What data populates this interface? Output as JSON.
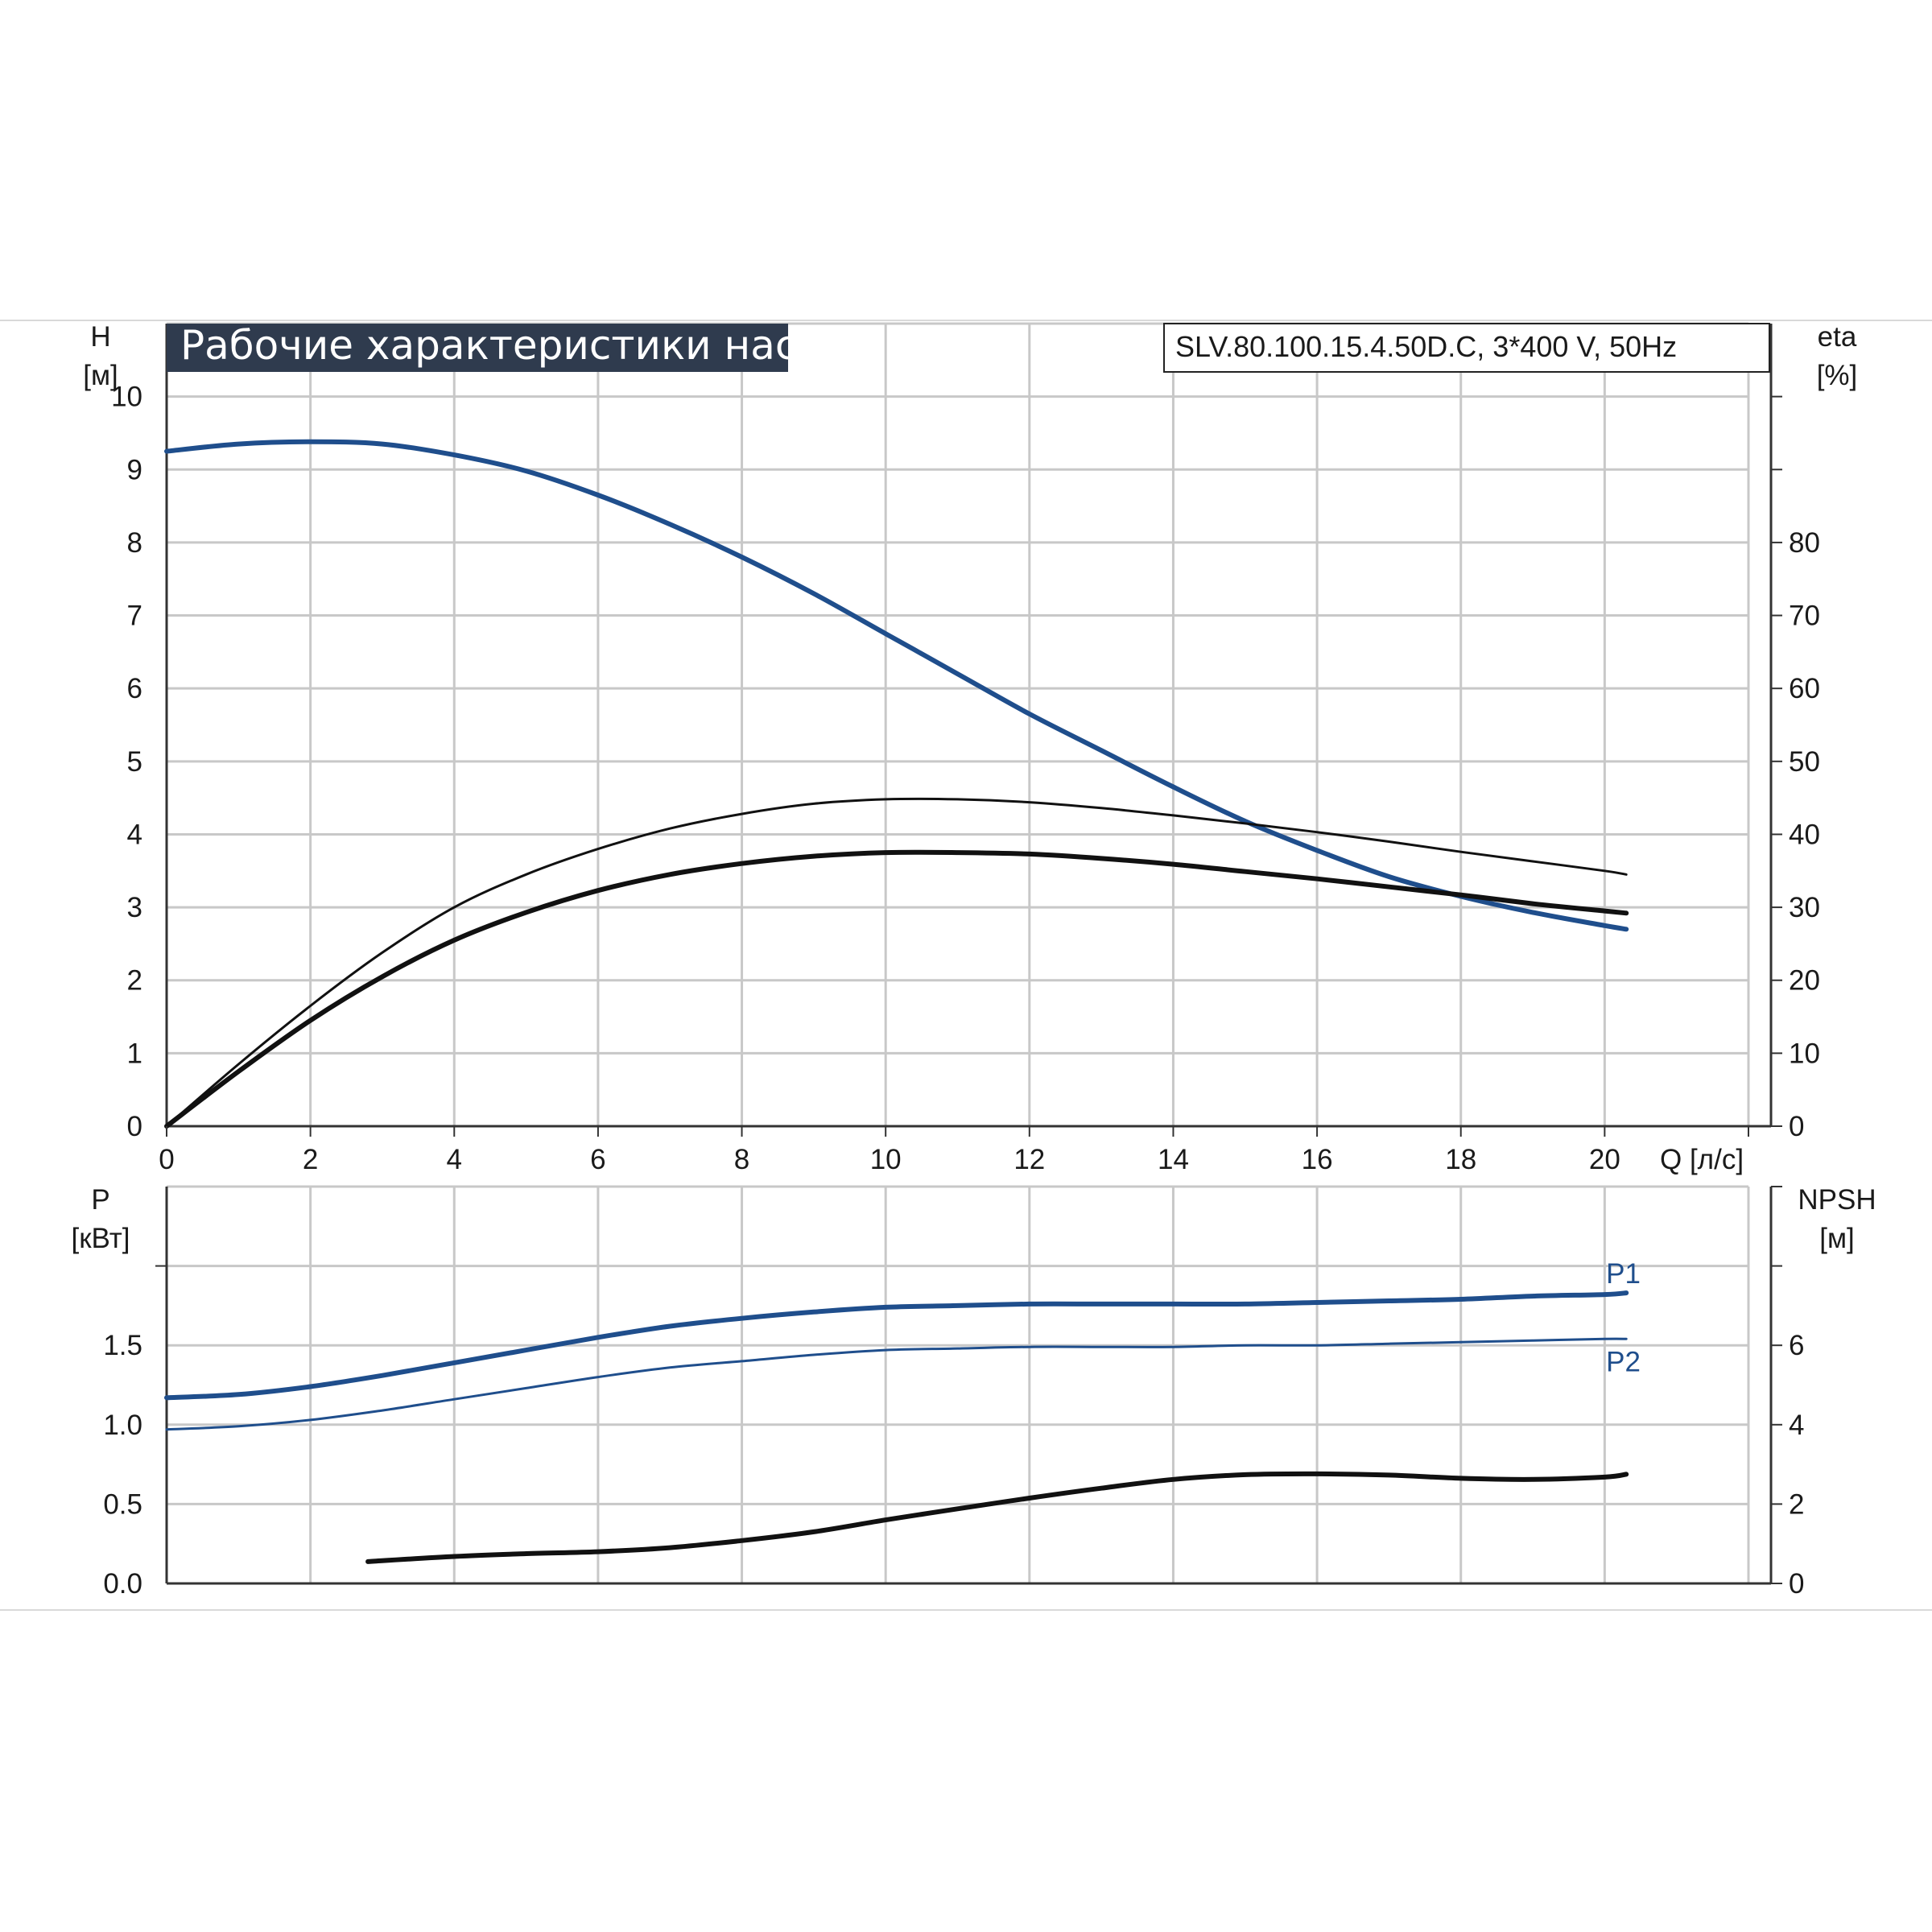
{
  "title": "Рабочие характеристики насоса",
  "model": "SLV.80.100.15.4.50D.C, 3*400 V, 50Hz",
  "colors": {
    "blue": "#1f4e8c",
    "black": "#111111",
    "grid": "#c8c8c8",
    "title_bg": "#2f3b4e"
  },
  "chart_data": [
    {
      "type": "line",
      "panel": "head-efficiency",
      "x_axis": {
        "label": "Q [л/с]",
        "range": [
          0,
          22
        ],
        "ticks": [
          "0",
          "2",
          "4",
          "6",
          "8",
          "10",
          "12",
          "14",
          "16",
          "18",
          "20"
        ]
      },
      "y_left": {
        "label_top": "H",
        "label_unit": "[м]",
        "range": [
          0,
          11
        ],
        "ticks": [
          "0",
          "1",
          "2",
          "3",
          "4",
          "5",
          "6",
          "7",
          "8",
          "9",
          "10"
        ]
      },
      "y_right": {
        "label_top": "eta",
        "label_unit": "[%]",
        "range": [
          0,
          110
        ],
        "ticks": [
          "0",
          "10",
          "20",
          "30",
          "40",
          "50",
          "60",
          "70",
          "80"
        ]
      },
      "grid": true,
      "series": [
        {
          "name": "",
          "axis": "left",
          "color": "blue",
          "width": 6,
          "x": [
            0,
            1,
            2,
            3,
            4,
            5,
            6,
            7,
            8,
            9,
            10,
            11,
            12,
            13,
            14,
            15,
            16,
            17,
            18,
            19,
            20,
            20.3
          ],
          "y": [
            9.25,
            9.35,
            9.38,
            9.35,
            9.2,
            8.98,
            8.65,
            8.25,
            7.8,
            7.3,
            6.75,
            6.2,
            5.65,
            5.15,
            4.65,
            4.18,
            3.78,
            3.42,
            3.15,
            2.93,
            2.75,
            2.7
          ]
        },
        {
          "name": "",
          "axis": "right",
          "color": "black",
          "width": 3,
          "x": [
            0,
            1,
            2,
            3,
            4,
            5,
            6,
            7,
            8,
            9,
            10,
            11,
            12,
            13,
            14,
            15,
            16,
            17,
            18,
            19,
            20,
            20.3
          ],
          "y": [
            0,
            8.5,
            16.5,
            23.8,
            30,
            34.5,
            38,
            40.8,
            42.8,
            44.2,
            44.8,
            44.8,
            44.4,
            43.6,
            42.6,
            41.5,
            40.3,
            39,
            37.6,
            36.3,
            35,
            34.5
          ]
        },
        {
          "name": "",
          "axis": "right",
          "color": "black",
          "width": 6,
          "x": [
            0,
            1,
            2,
            3,
            4,
            5,
            6,
            7,
            8,
            9,
            10,
            11,
            12,
            13,
            14,
            15,
            16,
            17,
            18,
            19,
            20,
            20.3
          ],
          "y": [
            0,
            7.5,
            14.5,
            20.5,
            25.5,
            29.3,
            32.3,
            34.5,
            36,
            37,
            37.5,
            37.5,
            37.3,
            36.7,
            35.9,
            34.9,
            33.9,
            32.8,
            31.7,
            30.5,
            29.5,
            29.2
          ]
        }
      ]
    },
    {
      "type": "line",
      "panel": "power-npsh",
      "x_axis": {
        "range": [
          0,
          22
        ]
      },
      "y_left": {
        "label_top": "P",
        "label_unit": "[кВт]",
        "range": [
          0,
          2.5
        ],
        "ticks": [
          "0.0",
          "0.5",
          "1.0",
          "1.5"
        ]
      },
      "y_right": {
        "label_top": "NPSH",
        "label_unit": "[м]",
        "range": [
          0,
          10
        ],
        "ticks": [
          "0",
          "2",
          "4",
          "6"
        ]
      },
      "grid": true,
      "series": [
        {
          "name": "P1",
          "axis": "left",
          "color": "blue",
          "width": 6,
          "x": [
            0,
            1,
            2,
            3,
            4,
            5,
            6,
            7,
            8,
            9,
            10,
            11,
            12,
            13,
            14,
            15,
            16,
            17,
            18,
            19,
            20,
            20.3
          ],
          "y": [
            1.17,
            1.19,
            1.24,
            1.31,
            1.39,
            1.47,
            1.55,
            1.62,
            1.67,
            1.71,
            1.74,
            1.75,
            1.76,
            1.76,
            1.76,
            1.76,
            1.77,
            1.78,
            1.79,
            1.81,
            1.82,
            1.83
          ]
        },
        {
          "name": "P2",
          "axis": "left",
          "color": "blue",
          "width": 3,
          "x": [
            0,
            1,
            2,
            3,
            4,
            5,
            6,
            7,
            8,
            9,
            10,
            11,
            12,
            13,
            14,
            15,
            16,
            17,
            18,
            19,
            20,
            20.3
          ],
          "y": [
            0.97,
            0.99,
            1.03,
            1.09,
            1.16,
            1.23,
            1.3,
            1.36,
            1.4,
            1.44,
            1.47,
            1.48,
            1.49,
            1.49,
            1.49,
            1.5,
            1.5,
            1.51,
            1.52,
            1.53,
            1.54,
            1.54
          ]
        },
        {
          "name": "",
          "axis": "right",
          "color": "black",
          "width": 6,
          "x": [
            2.8,
            4,
            5,
            6,
            7,
            8,
            9,
            10,
            11,
            12,
            13,
            14,
            15,
            16,
            17,
            18,
            19,
            20,
            20.3
          ],
          "y": [
            0.55,
            0.68,
            0.75,
            0.8,
            0.9,
            1.08,
            1.3,
            1.6,
            1.88,
            2.15,
            2.4,
            2.62,
            2.74,
            2.76,
            2.73,
            2.65,
            2.62,
            2.68,
            2.75
          ]
        }
      ],
      "curve_labels": [
        "P1",
        "P2"
      ]
    }
  ]
}
